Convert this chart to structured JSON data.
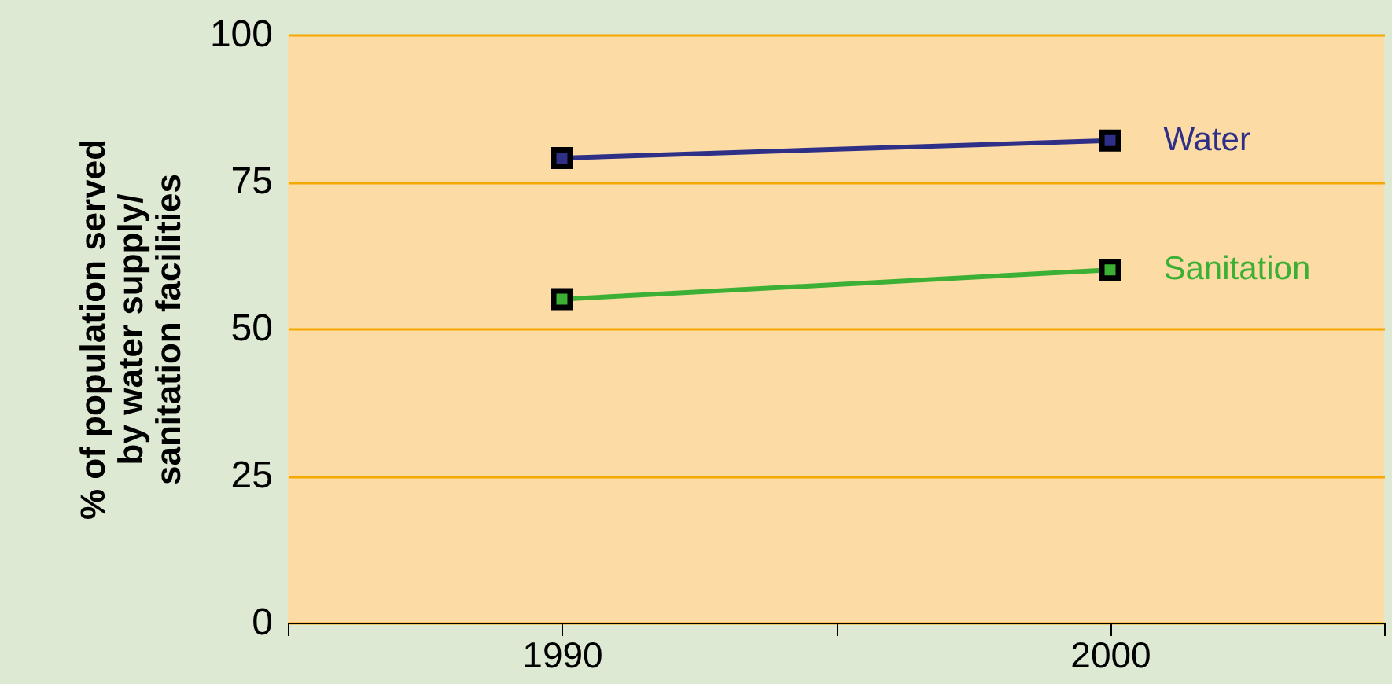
{
  "chart_data": {
    "type": "line",
    "ylabel": "% of population served\nby water supply/\nsanitation facilities",
    "x": [
      1990,
      2000
    ],
    "series": [
      {
        "name": "Water",
        "color": "#2e2f86",
        "values": [
          79,
          82
        ]
      },
      {
        "name": "Sanitation",
        "color": "#3cb034",
        "values": [
          55,
          60
        ]
      }
    ],
    "xlim": [
      1985,
      2005
    ],
    "xticks": [
      {
        "value": 1985,
        "label": null
      },
      1990,
      {
        "value": 1995,
        "label": null
      },
      2000,
      {
        "value": 2005,
        "label": null
      }
    ],
    "ylim": [
      0,
      100
    ],
    "yticks": [
      0,
      25,
      50,
      75,
      100
    ],
    "grid": "y",
    "marker": "square",
    "line_style": "solid",
    "legend": false
  }
}
